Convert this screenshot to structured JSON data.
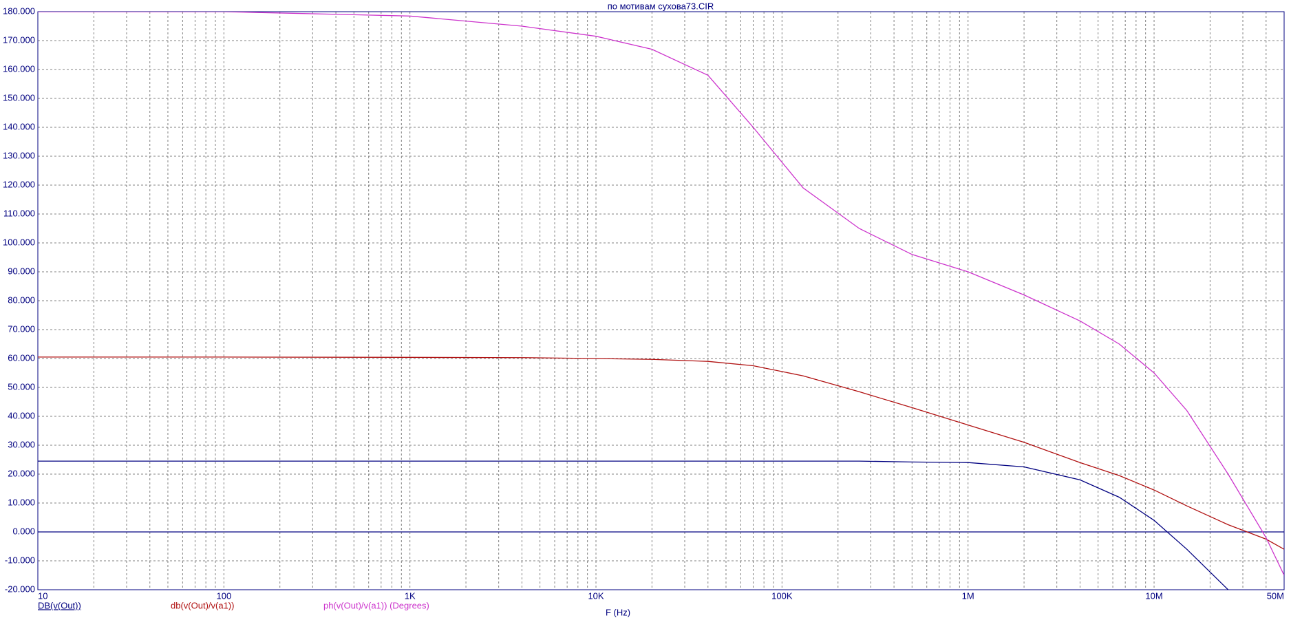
{
  "chart_data": {
    "type": "line",
    "title": "по мотивам сухова73.CIR",
    "x_label": "F (Hz)",
    "x_scale": "log",
    "grid": true,
    "zero_line": true,
    "xlim": [
      10,
      50000000
    ],
    "xticks": [
      {
        "value": 10,
        "label": "10"
      },
      {
        "value": 100,
        "label": "100"
      },
      {
        "value": 1000,
        "label": "1K"
      },
      {
        "value": 10000,
        "label": "10K"
      },
      {
        "value": 100000,
        "label": "100K"
      },
      {
        "value": 1000000,
        "label": "1M"
      },
      {
        "value": 10000000,
        "label": "10M"
      },
      {
        "value": 50000000,
        "label": "50M"
      }
    ],
    "ylim": [
      -20,
      180
    ],
    "yticks": [
      {
        "value": -20,
        "label": "-20.000"
      },
      {
        "value": -10,
        "label": "-10.000"
      },
      {
        "value": 0,
        "label": "0.000"
      },
      {
        "value": 10,
        "label": "10.000"
      },
      {
        "value": 20,
        "label": "20.000"
      },
      {
        "value": 30,
        "label": "30.000"
      },
      {
        "value": 40,
        "label": "40.000"
      },
      {
        "value": 50,
        "label": "50.000"
      },
      {
        "value": 60,
        "label": "60.000"
      },
      {
        "value": 70,
        "label": "70.000"
      },
      {
        "value": 80,
        "label": "80.000"
      },
      {
        "value": 90,
        "label": "90.000"
      },
      {
        "value": 100,
        "label": "100.000"
      },
      {
        "value": 110,
        "label": "110.000"
      },
      {
        "value": 120,
        "label": "120.000"
      },
      {
        "value": 130,
        "label": "130.000"
      },
      {
        "value": 140,
        "label": "140.000"
      },
      {
        "value": 150,
        "label": "150.000"
      },
      {
        "value": 160,
        "label": "160.000"
      },
      {
        "value": 170,
        "label": "170.000"
      },
      {
        "value": 180,
        "label": "180.000"
      }
    ],
    "x": [
      10,
      100,
      1000,
      4000,
      10000,
      20000,
      40000,
      70000,
      130000,
      260000,
      500000,
      1000000,
      2000000,
      4000000,
      6500000,
      10000000,
      15000000,
      25000000,
      40000000,
      50000000
    ],
    "series": [
      {
        "name": "DB(v(Out))",
        "color": "#000080",
        "values": [
          24.5,
          24.5,
          24.5,
          24.5,
          24.5,
          24.5,
          24.5,
          24.5,
          24.5,
          24.5,
          24.2,
          24,
          22.5,
          18,
          12,
          4,
          -6,
          -20,
          null,
          null
        ]
      },
      {
        "name": "db(v(Out)/v(a1))",
        "color": "#b01010",
        "values": [
          60.5,
          60.5,
          60.4,
          60.3,
          60,
          59.7,
          59,
          57.5,
          54,
          48.5,
          43,
          37,
          31,
          24,
          19.5,
          14.5,
          9,
          2.5,
          -2.5,
          -6
        ]
      },
      {
        "name": "ph(v(Out)/v(a1)) (Degrees)",
        "color": "#cc33cc",
        "values": [
          180,
          180,
          178.5,
          175,
          171.5,
          167,
          158,
          140,
          119,
          105,
          96,
          90,
          82,
          73,
          65,
          55,
          42,
          20,
          -2,
          -15
        ]
      }
    ]
  }
}
